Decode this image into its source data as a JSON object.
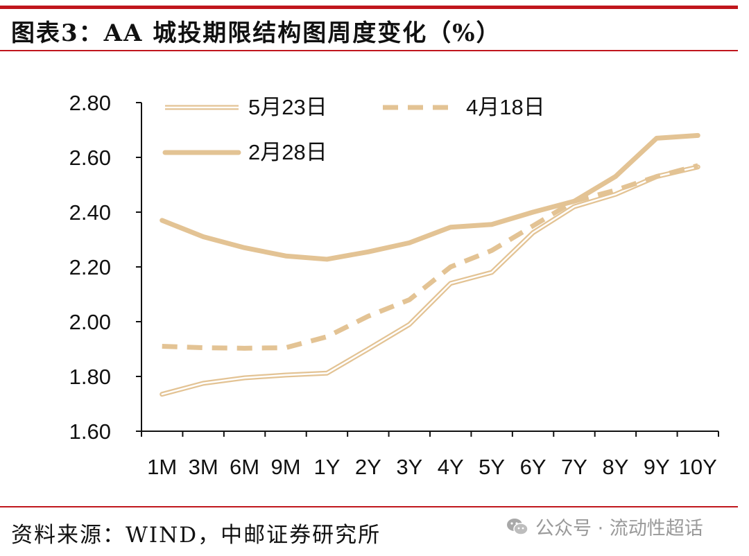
{
  "header": {
    "title": "图表3：AA 城投期限结构图周度变化（%）"
  },
  "footer": {
    "source": "资料来源：WIND，中邮证券研究所",
    "watermark": "公众号 · 流动性超话"
  },
  "colors": {
    "rule": "#c0161c",
    "series": "#e3c394",
    "axis": "#111111"
  },
  "chart_data": {
    "type": "line",
    "categories": [
      "1M",
      "3M",
      "6M",
      "9M",
      "1Y",
      "2Y",
      "3Y",
      "4Y",
      "5Y",
      "6Y",
      "7Y",
      "8Y",
      "9Y",
      "10Y"
    ],
    "ylim": [
      1.6,
      2.8
    ],
    "yticks": [
      "1.60",
      "1.80",
      "2.00",
      "2.20",
      "2.40",
      "2.60",
      "2.80"
    ],
    "legend_placement": "top-left",
    "grid": false,
    "series": [
      {
        "name": "5月23日",
        "style": "double",
        "values": [
          1.735,
          1.775,
          1.795,
          1.805,
          1.812,
          1.9,
          1.99,
          2.14,
          2.18,
          2.325,
          2.42,
          2.465,
          2.53,
          2.565
        ]
      },
      {
        "name": "4月18日",
        "style": "dashed",
        "values": [
          1.91,
          1.905,
          1.903,
          1.905,
          1.945,
          2.02,
          2.08,
          2.2,
          2.26,
          2.35,
          2.44,
          2.48,
          2.53,
          2.57
        ]
      },
      {
        "name": "2月28日",
        "style": "solid",
        "values": [
          2.37,
          2.31,
          2.27,
          2.24,
          2.228,
          2.255,
          2.288,
          2.345,
          2.355,
          2.4,
          2.44,
          2.53,
          2.67,
          2.68
        ]
      }
    ]
  }
}
